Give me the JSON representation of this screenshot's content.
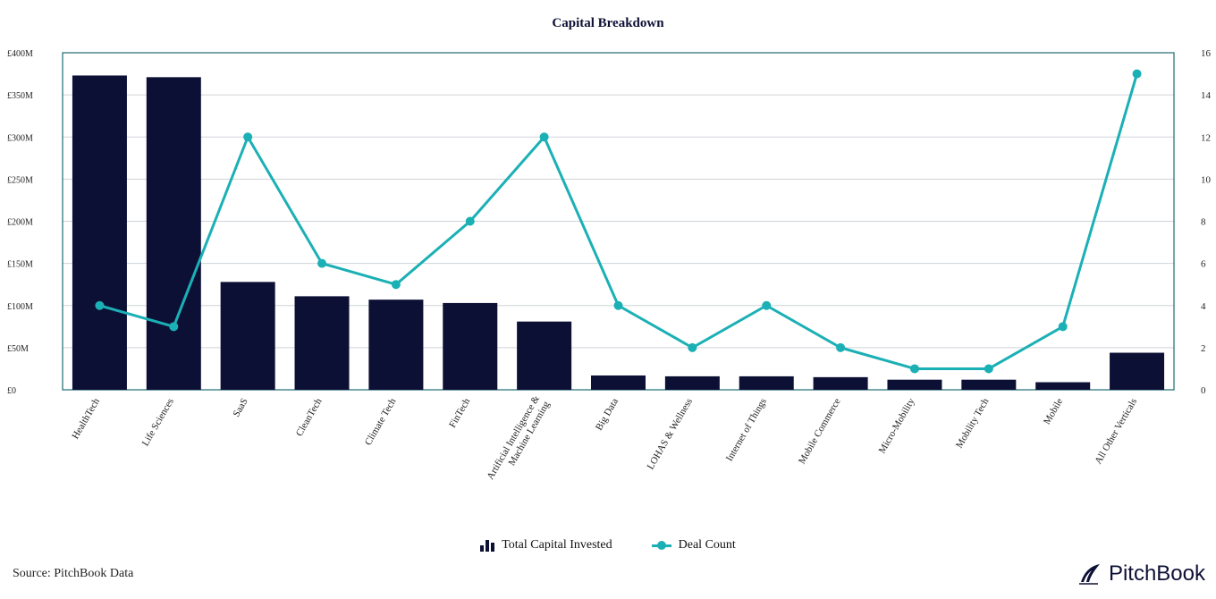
{
  "chart_data": {
    "type": "bar",
    "title": "Capital Breakdown",
    "categories": [
      "HealthTech",
      "Life Sciences",
      "SaaS",
      "CleanTech",
      "Climate Tech",
      "FinTech",
      "Artificial Intelligence & Machine Learning",
      "Big Data",
      "LOHAS & Wellness",
      "Internet of Things",
      "Mobile Commerce",
      "Micro-Mobility",
      "Mobility Tech",
      "Mobile",
      "All Other Verticals"
    ],
    "series": [
      {
        "name": "Total Capital Invested",
        "type": "bar",
        "axis": "left",
        "color": "#0d1035",
        "values": [
          373,
          371,
          128,
          111,
          107,
          103,
          81,
          17,
          16,
          16,
          15,
          12,
          12,
          9,
          44
        ]
      },
      {
        "name": "Deal Count",
        "type": "line",
        "axis": "right",
        "color": "#1bb0b5",
        "values": [
          4,
          3,
          12,
          6,
          5,
          8,
          12,
          4,
          2,
          4,
          2,
          1,
          1,
          3,
          15
        ]
      }
    ],
    "y_left": {
      "ylim": [
        0,
        400
      ],
      "tick_labels": [
        "£0",
        "£50M",
        "£100M",
        "£150M",
        "£200M",
        "£250M",
        "£300M",
        "£350M",
        "£400M"
      ]
    },
    "y_right": {
      "ylim": [
        0,
        16
      ],
      "tick_labels": [
        "0",
        "2",
        "4",
        "6",
        "8",
        "10",
        "12",
        "14",
        "16"
      ]
    },
    "grid": true,
    "legend_position": "bottom-center"
  },
  "source": "Source: PitchBook Data",
  "brand": "PitchBook"
}
